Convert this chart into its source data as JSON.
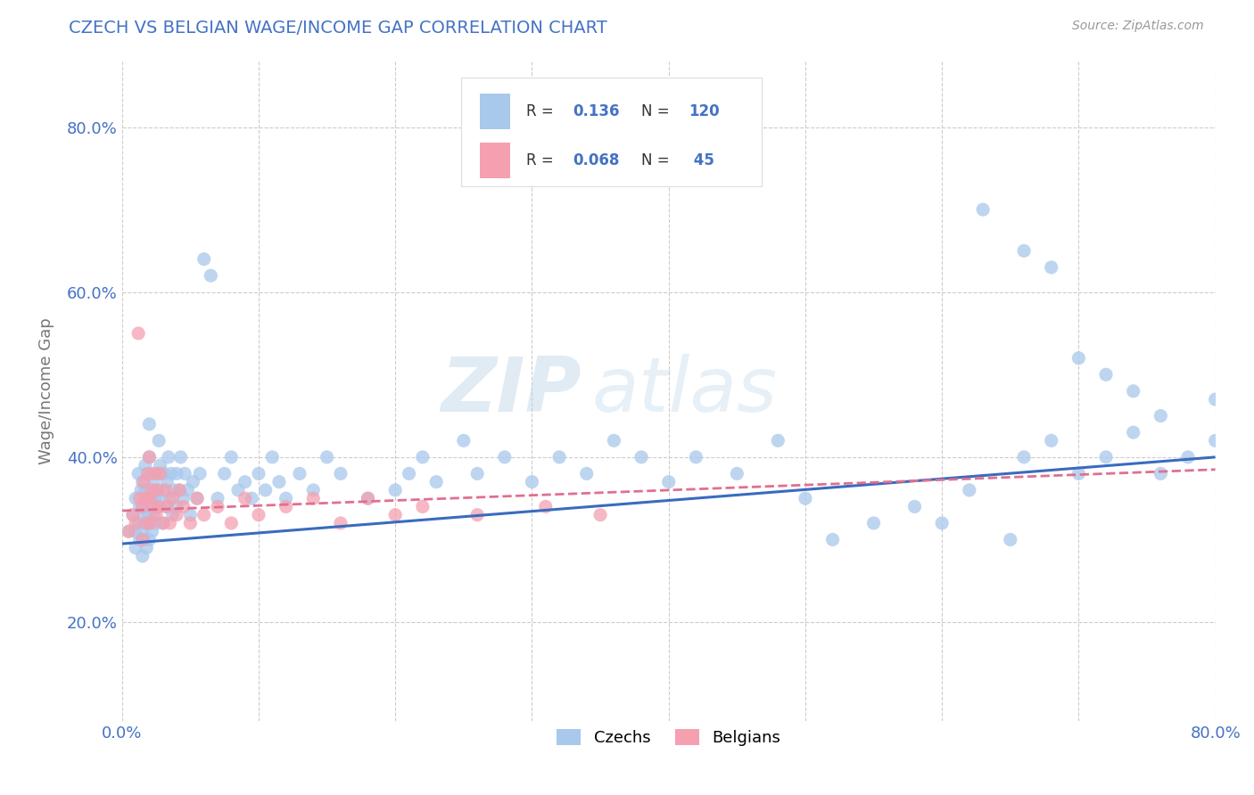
{
  "title": "CZECH VS BELGIAN WAGE/INCOME GAP CORRELATION CHART",
  "source_text": "Source: ZipAtlas.com",
  "ylabel": "Wage/Income Gap",
  "xlim": [
    0.0,
    0.8
  ],
  "ylim": [
    0.08,
    0.88
  ],
  "xticks": [
    0.0,
    0.1,
    0.2,
    0.3,
    0.4,
    0.5,
    0.6,
    0.7,
    0.8
  ],
  "yticks": [
    0.2,
    0.4,
    0.6,
    0.8
  ],
  "color_czech": "#A8C8EC",
  "color_belgian": "#F4A0B0",
  "color_trend_czech": "#3A6BBF",
  "color_trend_belgian": "#E07090",
  "R_czech": 0.136,
  "N_czech": 120,
  "R_belgian": 0.068,
  "N_belgian": 45,
  "legend_labels": [
    "Czechs",
    "Belgians"
  ],
  "watermark": "ZIP atlas",
  "background_color": "#FFFFFF",
  "grid_color": "#CCCCCC",
  "title_color": "#4472C4",
  "axis_label_color": "#777777",
  "tick_color": "#4472C4",
  "trend_czech_y0": 0.295,
  "trend_czech_y1": 0.4,
  "trend_belgian_y0": 0.335,
  "trend_belgian_y1": 0.385,
  "czechs_x": [
    0.005,
    0.008,
    0.01,
    0.01,
    0.01,
    0.012,
    0.012,
    0.013,
    0.013,
    0.014,
    0.015,
    0.015,
    0.015,
    0.015,
    0.016,
    0.016,
    0.017,
    0.017,
    0.017,
    0.018,
    0.018,
    0.019,
    0.019,
    0.02,
    0.02,
    0.02,
    0.02,
    0.021,
    0.021,
    0.022,
    0.022,
    0.022,
    0.023,
    0.023,
    0.024,
    0.025,
    0.025,
    0.026,
    0.027,
    0.027,
    0.028,
    0.028,
    0.03,
    0.03,
    0.031,
    0.032,
    0.033,
    0.034,
    0.035,
    0.036,
    0.037,
    0.038,
    0.04,
    0.04,
    0.042,
    0.043,
    0.045,
    0.046,
    0.048,
    0.05,
    0.052,
    0.055,
    0.057,
    0.06,
    0.065,
    0.07,
    0.075,
    0.08,
    0.085,
    0.09,
    0.095,
    0.1,
    0.105,
    0.11,
    0.115,
    0.12,
    0.13,
    0.14,
    0.15,
    0.16,
    0.18,
    0.2,
    0.21,
    0.22,
    0.23,
    0.25,
    0.26,
    0.28,
    0.3,
    0.32,
    0.34,
    0.36,
    0.38,
    0.4,
    0.42,
    0.45,
    0.48,
    0.5,
    0.52,
    0.55,
    0.58,
    0.6,
    0.62,
    0.65,
    0.66,
    0.68,
    0.7,
    0.72,
    0.74,
    0.76,
    0.78,
    0.8,
    0.63,
    0.66,
    0.68,
    0.7,
    0.72,
    0.74,
    0.76,
    0.8
  ],
  "czechs_y": [
    0.31,
    0.33,
    0.29,
    0.31,
    0.35,
    0.32,
    0.38,
    0.3,
    0.34,
    0.36,
    0.28,
    0.31,
    0.34,
    0.37,
    0.3,
    0.33,
    0.36,
    0.39,
    0.32,
    0.29,
    0.35,
    0.38,
    0.33,
    0.3,
    0.36,
    0.4,
    0.44,
    0.32,
    0.35,
    0.31,
    0.34,
    0.38,
    0.33,
    0.37,
    0.35,
    0.32,
    0.36,
    0.34,
    0.38,
    0.42,
    0.35,
    0.39,
    0.32,
    0.36,
    0.38,
    0.34,
    0.37,
    0.4,
    0.35,
    0.38,
    0.33,
    0.36,
    0.34,
    0.38,
    0.36,
    0.4,
    0.35,
    0.38,
    0.36,
    0.33,
    0.37,
    0.35,
    0.38,
    0.64,
    0.62,
    0.35,
    0.38,
    0.4,
    0.36,
    0.37,
    0.35,
    0.38,
    0.36,
    0.4,
    0.37,
    0.35,
    0.38,
    0.36,
    0.4,
    0.38,
    0.35,
    0.36,
    0.38,
    0.4,
    0.37,
    0.42,
    0.38,
    0.4,
    0.37,
    0.4,
    0.38,
    0.42,
    0.4,
    0.37,
    0.4,
    0.38,
    0.42,
    0.35,
    0.3,
    0.32,
    0.34,
    0.32,
    0.36,
    0.3,
    0.4,
    0.42,
    0.38,
    0.4,
    0.43,
    0.38,
    0.4,
    0.42,
    0.7,
    0.65,
    0.63,
    0.52,
    0.5,
    0.48,
    0.45,
    0.47
  ],
  "belgians_x": [
    0.005,
    0.008,
    0.01,
    0.012,
    0.013,
    0.015,
    0.015,
    0.016,
    0.017,
    0.018,
    0.019,
    0.02,
    0.02,
    0.021,
    0.022,
    0.023,
    0.024,
    0.025,
    0.026,
    0.027,
    0.028,
    0.03,
    0.032,
    0.033,
    0.035,
    0.037,
    0.04,
    0.042,
    0.045,
    0.05,
    0.055,
    0.06,
    0.07,
    0.08,
    0.09,
    0.1,
    0.12,
    0.14,
    0.16,
    0.18,
    0.2,
    0.22,
    0.26,
    0.31,
    0.35
  ],
  "belgians_y": [
    0.31,
    0.33,
    0.32,
    0.55,
    0.35,
    0.3,
    0.34,
    0.37,
    0.35,
    0.32,
    0.38,
    0.35,
    0.4,
    0.32,
    0.36,
    0.34,
    0.38,
    0.33,
    0.36,
    0.34,
    0.38,
    0.32,
    0.36,
    0.34,
    0.32,
    0.35,
    0.33,
    0.36,
    0.34,
    0.32,
    0.35,
    0.33,
    0.34,
    0.32,
    0.35,
    0.33,
    0.34,
    0.35,
    0.32,
    0.35,
    0.33,
    0.34,
    0.33,
    0.34,
    0.33
  ]
}
